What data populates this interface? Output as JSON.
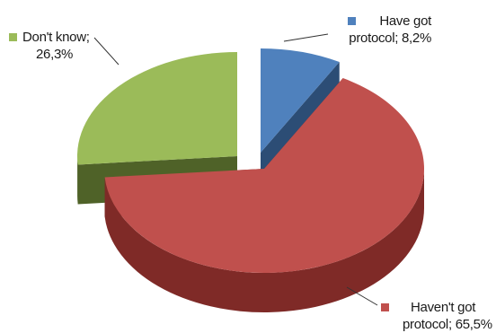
{
  "chart_data": {
    "type": "pie",
    "style": "3d-exploded",
    "slices": [
      {
        "label": "Have got protocol",
        "value": 8.2,
        "display": "8,2%",
        "color": "#4f81bd",
        "side_color": "#2c4d75"
      },
      {
        "label": "Haven't got protocol",
        "value": 65.5,
        "display": "65,5%",
        "color": "#c0504d",
        "side_color": "#7f2a27"
      },
      {
        "label": "Don't know",
        "value": 26.3,
        "display": "26,3%",
        "color": "#9bbb59",
        "side_color": "#4f6228"
      }
    ],
    "legend": "data-labels"
  },
  "labels": {
    "dont_know_line1": "Don't know;",
    "dont_know_line2": "26,3%",
    "have_line1": "Have got",
    "have_line2": "protocol; 8,2%",
    "havent_line1": "Haven't got",
    "havent_line2": "protocol; 65,5%"
  }
}
